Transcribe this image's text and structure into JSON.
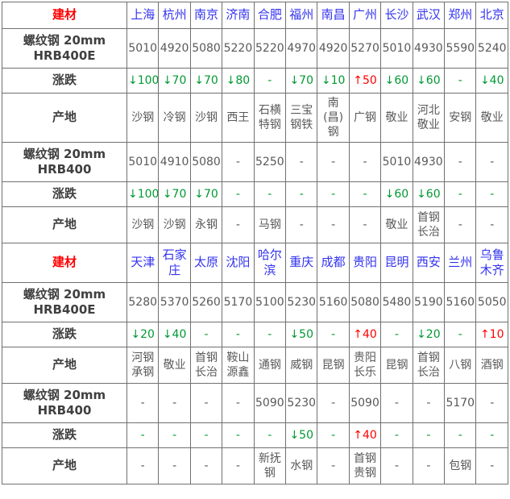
{
  "colors": {
    "red": "#ff0000",
    "blue": "#3333f0",
    "green": "#009933",
    "gray": "#595959",
    "label": "#404040",
    "border": "#707070"
  },
  "chart_data": {
    "type": "table",
    "title": "建材 螺纹钢价格表",
    "sections": [
      {
        "label": "建材",
        "cities": [
          "上海",
          "杭州",
          "南京",
          "济南",
          "合肥",
          "福州",
          "南昌",
          "广州",
          "长沙",
          "武汉",
          "郑州",
          "北京"
        ],
        "rows": [
          {
            "label": "螺纹钢 20mm HRB400E",
            "type": "price",
            "values": [
              "5010",
              "4920",
              "5080",
              "5220",
              "5220",
              "4970",
              "4920",
              "5270",
              "5010",
              "4930",
              "5590",
              "5240"
            ]
          },
          {
            "label": "涨跌",
            "type": "change",
            "values": [
              "↓100",
              "↓70",
              "↓70",
              "↓80",
              "-",
              "↓70",
              "↓10",
              "↑50",
              "↓60",
              "↓60",
              "-",
              "↓40"
            ]
          },
          {
            "label": "产地",
            "type": "origin",
            "values": [
              "沙钢",
              "冷钢",
              "沙钢",
              "西王",
              "石横特钢",
              "三宝钢铁",
              "南(昌)钢",
              "广钢",
              "敬业",
              "河北敬业",
              "安钢",
              "敬业"
            ]
          },
          {
            "label": "螺纹钢 20mm HRB400",
            "type": "price",
            "values": [
              "5010",
              "4910",
              "5080",
              "-",
              "5250",
              "-",
              "-",
              "-",
              "5010",
              "4930",
              "-",
              "-"
            ]
          },
          {
            "label": "涨跌",
            "type": "change",
            "values": [
              "↓100",
              "↓70",
              "↓70",
              "-",
              "-",
              "-",
              "-",
              "-",
              "↓60",
              "↓60",
              "-",
              "-"
            ]
          },
          {
            "label": "产地",
            "type": "origin",
            "values": [
              "沙钢",
              "沙钢",
              "永钢",
              "-",
              "马钢",
              "-",
              "-",
              "-",
              "敬业",
              "首钢长治",
              "-",
              "-"
            ]
          }
        ]
      },
      {
        "label": "建材",
        "cities": [
          "天津",
          "石家庄",
          "太原",
          "沈阳",
          "哈尔滨",
          "重庆",
          "成都",
          "贵阳",
          "昆明",
          "西安",
          "兰州",
          "乌鲁木齐"
        ],
        "rows": [
          {
            "label": "螺纹钢 20mm HRB400E",
            "type": "price",
            "values": [
              "5280",
              "5370",
              "5260",
              "5170",
              "5100",
              "5230",
              "5160",
              "5080",
              "5480",
              "5190",
              "5160",
              "5050"
            ]
          },
          {
            "label": "涨跌",
            "type": "change",
            "values": [
              "↓20",
              "↓40",
              "-",
              "-",
              "-",
              "↓50",
              "-",
              "↑40",
              "-",
              "↓20",
              "-",
              "↑10"
            ]
          },
          {
            "label": "产地",
            "type": "origin",
            "values": [
              "河钢承钢",
              "敬业",
              "首钢长治",
              "鞍山源鑫",
              "通钢",
              "威钢",
              "昆钢",
              "贵阳长乐",
              "昆钢",
              "首钢长治",
              "八钢",
              "酒钢"
            ]
          },
          {
            "label": "螺纹钢 20mm HRB400",
            "type": "price",
            "values": [
              "-",
              "-",
              "-",
              "-",
              "5090",
              "5230",
              "-",
              "5090",
              "-",
              "-",
              "5170",
              "-"
            ]
          },
          {
            "label": "涨跌",
            "type": "change",
            "values": [
              "-",
              "-",
              "-",
              "-",
              "-",
              "↓50",
              "-",
              "↑40",
              "-",
              "-",
              "-",
              "-"
            ]
          },
          {
            "label": "产地",
            "type": "origin",
            "values": [
              "-",
              "-",
              "-",
              "-",
              "新抚钢",
              "水钢",
              "-",
              "首钢贵钢",
              "-",
              "-",
              "包钢",
              "-"
            ]
          }
        ]
      }
    ]
  }
}
